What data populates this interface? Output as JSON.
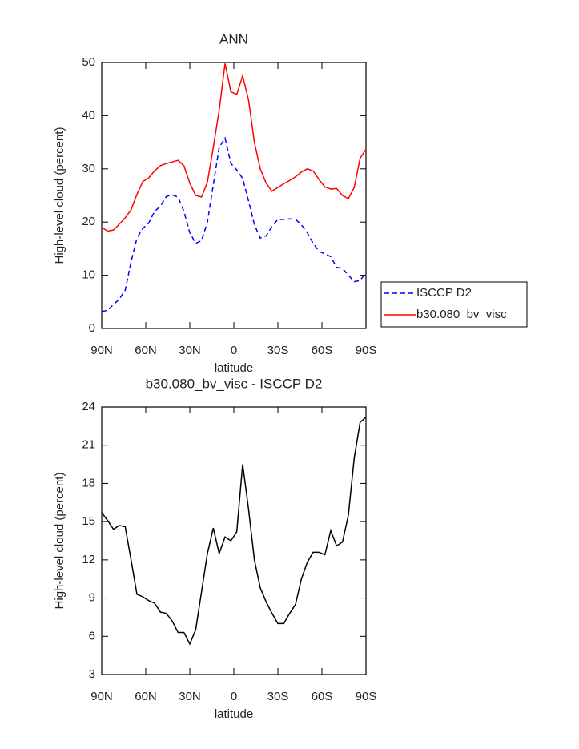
{
  "chart_data": [
    {
      "type": "line",
      "title": "ANN",
      "xlabel": "latitude",
      "ylabel": "High-level cloud (percent)",
      "x": [
        90,
        86,
        82,
        78,
        74,
        70,
        66,
        62,
        58,
        54,
        50,
        46,
        42,
        38,
        34,
        30,
        26,
        22,
        18,
        14,
        10,
        6,
        2,
        -2,
        -6,
        -10,
        -14,
        -18,
        -22,
        -26,
        -30,
        -34,
        -38,
        -42,
        -46,
        -50,
        -54,
        -58,
        -62,
        -66,
        -70,
        -74,
        -78,
        -82,
        -86,
        -90
      ],
      "series": [
        {
          "name": "ISCCP D2",
          "color": "#0000ff",
          "line_style": "dashed",
          "values": [
            3.2,
            3.4,
            4.5,
            5.5,
            7.2,
            12.5,
            17,
            18.8,
            19.8,
            22,
            23,
            24.8,
            25.1,
            24.7,
            22,
            18,
            16,
            16.5,
            20,
            27,
            34,
            35.8,
            31,
            29.8,
            28.2,
            24,
            19.5,
            17,
            17.4,
            19.2,
            20.5,
            20.5,
            20.6,
            20.5,
            19.5,
            18,
            16,
            14.5,
            14,
            13.5,
            11.5,
            11.3,
            10,
            8.8,
            9,
            10.5
          ]
        },
        {
          "name": "b30.080_bv_visc",
          "color": "#ff0000",
          "line_style": "solid",
          "values": [
            19,
            18.3,
            18.5,
            19.6,
            20.8,
            22.3,
            25.2,
            27.6,
            28.3,
            29.6,
            30.6,
            31,
            31.3,
            31.6,
            30.6,
            27.3,
            25,
            24.7,
            27.5,
            34,
            41,
            49.8,
            44.5,
            44,
            47.5,
            43,
            35,
            30,
            27.3,
            25.8,
            26.5,
            27.2,
            27.8,
            28.5,
            29.4,
            30,
            29.6,
            28,
            26.6,
            26.2,
            26.3,
            25,
            24.4,
            26.5,
            32,
            33.7
          ]
        }
      ],
      "xlim": [
        90,
        -90
      ],
      "xticks": [
        {
          "value": 90,
          "label": "90N"
        },
        {
          "value": 60,
          "label": "60N"
        },
        {
          "value": 30,
          "label": "30N"
        },
        0,
        {
          "value": -30,
          "label": "30S"
        },
        {
          "value": -60,
          "label": "60S"
        },
        {
          "value": -90,
          "label": "90S"
        }
      ],
      "ylim": [
        0,
        50
      ],
      "yticks": [
        0,
        10,
        20,
        30,
        40,
        50
      ],
      "legend": "right"
    },
    {
      "type": "line",
      "title": "b30.080_bv_visc - ISCCP D2",
      "xlabel": "latitude",
      "ylabel": "High-level cloud (percent)",
      "x": [
        90,
        86,
        82,
        78,
        74,
        70,
        66,
        62,
        58,
        54,
        50,
        46,
        42,
        38,
        34,
        30,
        26,
        22,
        18,
        14,
        10,
        6,
        2,
        -2,
        -6,
        -10,
        -14,
        -18,
        -22,
        -26,
        -30,
        -34,
        -38,
        -42,
        -46,
        -50,
        -54,
        -58,
        -62,
        -66,
        -70,
        -74,
        -78,
        -82,
        -86,
        -90
      ],
      "color": "#000000",
      "values": [
        15.7,
        15.1,
        14.4,
        14.7,
        14.6,
        12,
        9.3,
        9.1,
        8.8,
        8.6,
        7.9,
        7.8,
        7.2,
        6.3,
        6.3,
        5.4,
        6.5,
        9.5,
        12.5,
        14.5,
        12.5,
        13.8,
        13.5,
        14.2,
        19.5,
        16,
        12,
        9.8,
        8.7,
        7.8,
        7,
        7,
        7.8,
        8.5,
        10.5,
        11.8,
        12.6,
        12.6,
        12.4,
        14.3,
        13.1,
        13.4,
        15.5,
        20,
        22.8,
        23.2
      ],
      "xlim": [
        90,
        -90
      ],
      "xticks": [
        {
          "value": 90,
          "label": "90N"
        },
        {
          "value": 60,
          "label": "60N"
        },
        {
          "value": 30,
          "label": "30N"
        },
        0,
        {
          "value": -30,
          "label": "30S"
        },
        {
          "value": -60,
          "label": "60S"
        },
        {
          "value": -90,
          "label": "90S"
        }
      ],
      "ylim": [
        3,
        24
      ],
      "yticks": [
        3,
        6,
        9,
        12,
        15,
        18,
        21,
        24
      ]
    }
  ]
}
